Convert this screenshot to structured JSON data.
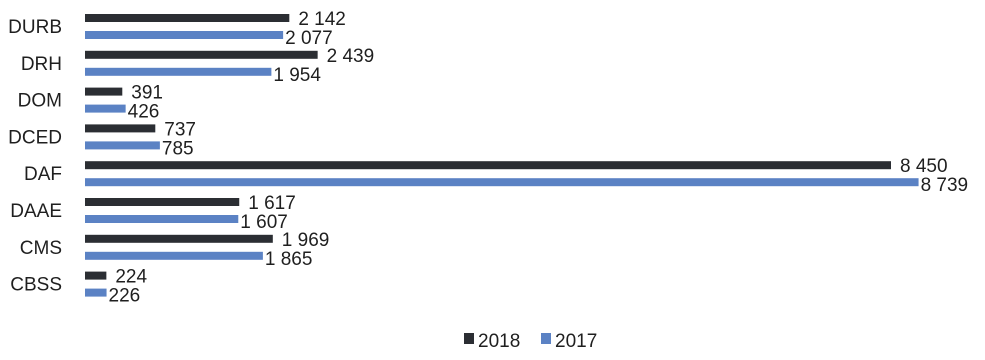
{
  "chart_data": {
    "type": "bar",
    "orientation": "horizontal",
    "categories": [
      "DURB",
      "DRH",
      "DOM",
      "DCED",
      "DAF",
      "DAAE",
      "CMS",
      "CBSS"
    ],
    "series": [
      {
        "name": "2018",
        "color": "#2b2e33",
        "values": [
          2142,
          2439,
          391,
          737,
          8450,
          1617,
          1969,
          224
        ]
      },
      {
        "name": "2017",
        "color": "#5b82c4",
        "values": [
          2077,
          1954,
          426,
          785,
          8739,
          1607,
          1865,
          226
        ]
      }
    ],
    "value_labels": {
      "2018": [
        "2 142",
        "2 439",
        "391",
        "737",
        "8 450",
        "1 617",
        "1 969",
        "224"
      ],
      "2017": [
        "2 077",
        "1 954",
        "426",
        "785",
        "8 739",
        "1 607",
        "1 865",
        "226"
      ]
    },
    "xlim": [
      0,
      9600
    ],
    "grid": false,
    "legend_position": "bottom-center",
    "title": "",
    "xlabel": "",
    "ylabel": ""
  }
}
